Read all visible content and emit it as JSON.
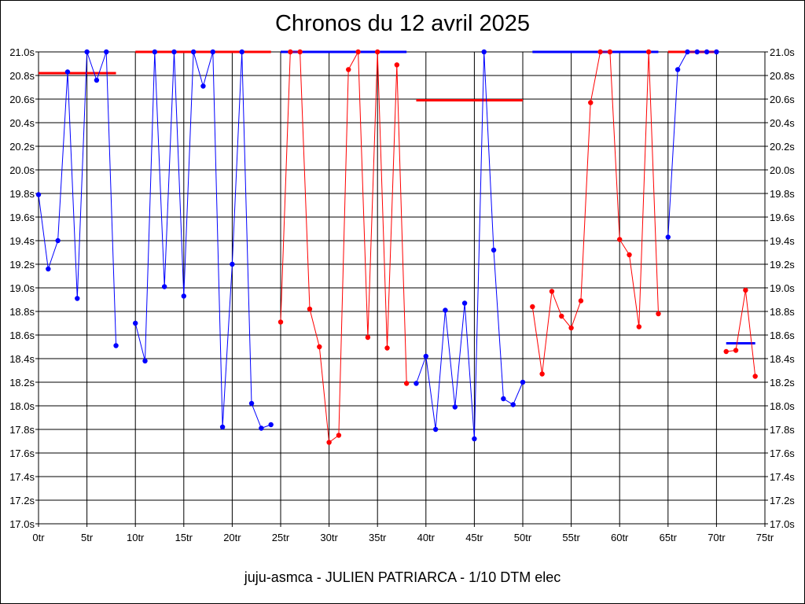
{
  "chart_data": {
    "type": "line",
    "title": "Chronos du 12 avril 2025",
    "caption": "juju-asmca - JULIEN PATRIARCA - 1/10 DTM elec",
    "xlim": [
      0,
      75
    ],
    "ylim": [
      17.0,
      21.0
    ],
    "x_ticks": [
      0,
      5,
      10,
      15,
      20,
      25,
      30,
      35,
      40,
      45,
      50,
      55,
      60,
      65,
      70,
      75
    ],
    "x_tick_labels": [
      "0tr",
      "5tr",
      "10tr",
      "15tr",
      "20tr",
      "25tr",
      "30tr",
      "35tr",
      "40tr",
      "45tr",
      "50tr",
      "55tr",
      "60tr",
      "65tr",
      "70tr",
      "75tr"
    ],
    "y_ticks": [
      17.0,
      17.2,
      17.4,
      17.6,
      17.8,
      18.0,
      18.2,
      18.4,
      18.6,
      18.8,
      19.0,
      19.2,
      19.4,
      19.6,
      19.8,
      20.0,
      20.2,
      20.4,
      20.6,
      20.8,
      21.0
    ],
    "y_tick_labels": [
      "17.0s",
      "17.2s",
      "17.4s",
      "17.6s",
      "17.8s",
      "18.0s",
      "18.2s",
      "18.4s",
      "18.6s",
      "18.8s",
      "19.0s",
      "19.2s",
      "19.4s",
      "19.6s",
      "19.8s",
      "20.0s",
      "20.2s",
      "20.4s",
      "20.6s",
      "20.8s",
      "21.0s"
    ],
    "grid": true,
    "colors": {
      "blue": "#0000ff",
      "red": "#ff0000"
    },
    "series": [
      {
        "color": "#0000ff",
        "points": [
          [
            0,
            19.79
          ],
          [
            1,
            19.16
          ],
          [
            2,
            19.4
          ],
          [
            3,
            20.83
          ],
          [
            4,
            18.91
          ],
          [
            5,
            21.0
          ],
          [
            6,
            20.76
          ],
          [
            7,
            21.0
          ],
          [
            8,
            18.51
          ]
        ]
      },
      {
        "color": "#0000ff",
        "points": [
          [
            10,
            18.7
          ],
          [
            11,
            18.38
          ],
          [
            12,
            21.0
          ],
          [
            13,
            19.01
          ],
          [
            14,
            21.0
          ],
          [
            15,
            18.93
          ],
          [
            16,
            21.0
          ],
          [
            17,
            20.71
          ],
          [
            18,
            21.0
          ],
          [
            19,
            17.82
          ],
          [
            20,
            19.2
          ],
          [
            21,
            21.0
          ],
          [
            22,
            18.02
          ],
          [
            23,
            17.81
          ],
          [
            24,
            17.84
          ]
        ]
      },
      {
        "color": "#ff0000",
        "points": [
          [
            25,
            18.71
          ],
          [
            26,
            21.0
          ],
          [
            27,
            21.0
          ],
          [
            28,
            18.82
          ],
          [
            29,
            18.5
          ],
          [
            30,
            17.69
          ],
          [
            31,
            17.75
          ],
          [
            32,
            20.85
          ],
          [
            33,
            21.0
          ],
          [
            34,
            18.58
          ],
          [
            35,
            21.0
          ],
          [
            36,
            18.49
          ],
          [
            37,
            20.89
          ],
          [
            38,
            18.19
          ]
        ]
      },
      {
        "color": "#0000ff",
        "points": [
          [
            39,
            18.19
          ],
          [
            40,
            18.42
          ],
          [
            41,
            17.8
          ],
          [
            42,
            18.81
          ],
          [
            43,
            17.99
          ],
          [
            44,
            18.87
          ],
          [
            45,
            17.72
          ],
          [
            46,
            21.0
          ],
          [
            47,
            19.32
          ],
          [
            48,
            18.06
          ],
          [
            49,
            18.01
          ],
          [
            50,
            18.2
          ]
        ]
      },
      {
        "color": "#ff0000",
        "points": [
          [
            51,
            18.84
          ],
          [
            52,
            18.27
          ],
          [
            53,
            18.97
          ],
          [
            54,
            18.76
          ],
          [
            55,
            18.66
          ],
          [
            56,
            18.89
          ],
          [
            57,
            20.57
          ],
          [
            58,
            21.0
          ],
          [
            59,
            21.0
          ],
          [
            60,
            19.41
          ],
          [
            61,
            19.28
          ],
          [
            62,
            18.67
          ],
          [
            63,
            21.0
          ],
          [
            64,
            18.78
          ]
        ]
      },
      {
        "color": "#0000ff",
        "points": [
          [
            65,
            19.43
          ],
          [
            66,
            20.85
          ],
          [
            67,
            21.0
          ],
          [
            68,
            21.0
          ],
          [
            69,
            21.0
          ],
          [
            70,
            21.0
          ]
        ]
      },
      {
        "color": "#ff0000",
        "points": [
          [
            71,
            18.46
          ],
          [
            72,
            18.47
          ],
          [
            73,
            18.98
          ],
          [
            74,
            18.25
          ]
        ]
      }
    ],
    "averages": [
      {
        "color": "#ff0000",
        "x": [
          0,
          8
        ],
        "y": 20.82
      },
      {
        "color": "#ff0000",
        "x": [
          10,
          24
        ],
        "y": 21.0
      },
      {
        "color": "#0000ff",
        "x": [
          25,
          38
        ],
        "y": 21.0
      },
      {
        "color": "#ff0000",
        "x": [
          39,
          50
        ],
        "y": 20.59
      },
      {
        "color": "#0000ff",
        "x": [
          51,
          64
        ],
        "y": 21.0
      },
      {
        "color": "#ff0000",
        "x": [
          65,
          70
        ],
        "y": 21.0
      },
      {
        "color": "#0000ff",
        "x": [
          71,
          74
        ],
        "y": 18.53
      }
    ]
  }
}
